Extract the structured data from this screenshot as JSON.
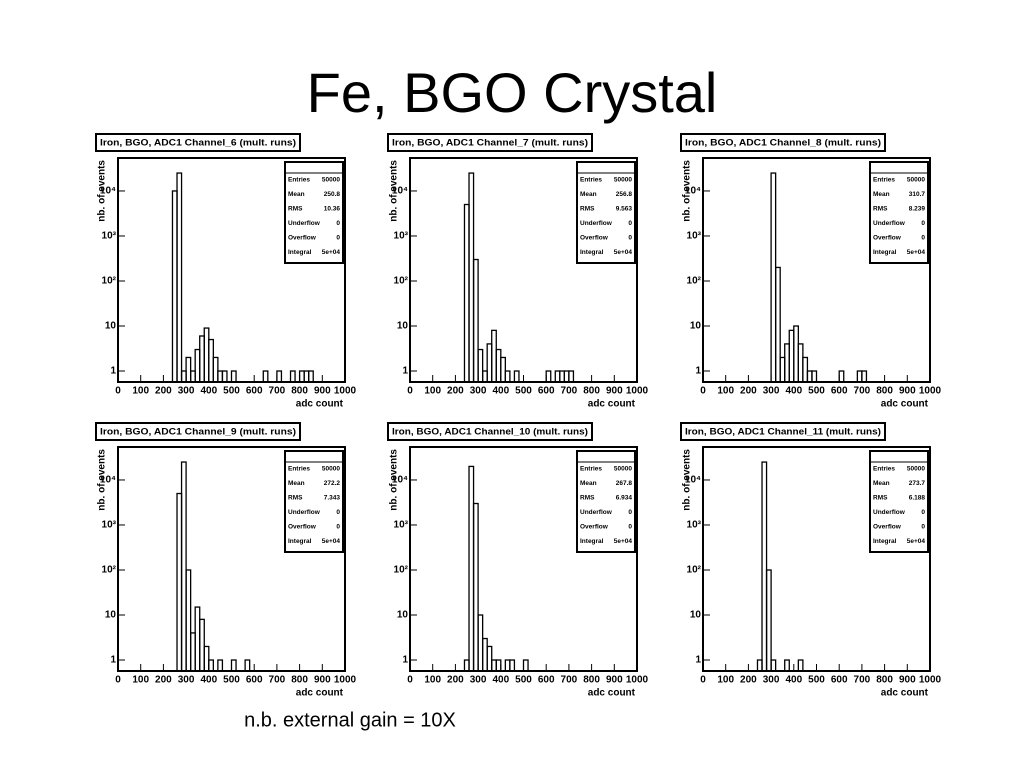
{
  "title": "Fe, BGO Crystal",
  "note": "n.b. external gain = 10X",
  "chart_data": [
    {
      "type": "histogram",
      "title": "Iron, BGO, ADC1 Channel_6 (mult. runs)",
      "xlabel": "adc count",
      "ylabel": "nb. of events",
      "bins": [
        200,
        220,
        240,
        260,
        280,
        300,
        320,
        340,
        360,
        380,
        400,
        420,
        440,
        460,
        480,
        500,
        520,
        540,
        560,
        580,
        600,
        620,
        640,
        660,
        680,
        700,
        720,
        740,
        760,
        780,
        800,
        820,
        840,
        860,
        880
      ],
      "counts": [
        0,
        0,
        10000,
        25000,
        1,
        2,
        1,
        3,
        6,
        9,
        5,
        2,
        1,
        1,
        0,
        1,
        0,
        0,
        0,
        0,
        0,
        0,
        1,
        0,
        0,
        1,
        0,
        0,
        1,
        0,
        1,
        1,
        1,
        0
      ],
      "xlim": [
        0,
        1000
      ],
      "xticks": [
        0,
        100,
        200,
        300,
        400,
        500,
        600,
        700,
        800,
        900,
        1000
      ],
      "ylim": [
        0.57,
        54000
      ],
      "log_y": true,
      "yticks": [
        1,
        10,
        {
          "value": 100,
          "label": "10²"
        },
        {
          "value": 1000,
          "label": "10³"
        },
        {
          "value": 10000,
          "label": "10⁴"
        }
      ],
      "stats": {
        "labels": [
          "Entries",
          "Mean",
          "RMS",
          "Underflow",
          "Overflow",
          "Integral"
        ],
        "values": [
          50000,
          250.8,
          10.36,
          0,
          0,
          {
            "value": 50000,
            "label": "5e+04"
          }
        ]
      }
    },
    {
      "type": "histogram",
      "title": "Iron, BGO, ADC1 Channel_7 (mult. runs)",
      "xlabel": "adc count",
      "ylabel": "nb. of events",
      "bins": [
        200,
        220,
        240,
        260,
        280,
        300,
        320,
        340,
        360,
        380,
        400,
        420,
        440,
        460,
        480,
        500,
        520,
        540,
        560,
        580,
        600,
        620,
        640,
        660,
        680,
        700,
        720,
        740,
        760,
        780,
        800,
        820,
        840,
        860,
        880
      ],
      "counts": [
        0,
        0,
        5000,
        25000,
        300,
        3,
        1,
        4,
        8,
        3,
        2,
        1,
        0,
        1,
        0,
        0,
        0,
        0,
        0,
        0,
        1,
        0,
        1,
        1,
        1,
        1,
        0,
        0,
        0,
        0,
        0,
        0,
        0,
        0
      ],
      "xlim": [
        0,
        1000
      ],
      "xticks": [
        0,
        100,
        200,
        300,
        400,
        500,
        600,
        700,
        800,
        900,
        1000
      ],
      "ylim": [
        0.57,
        54000
      ],
      "log_y": true,
      "yticks": [
        1,
        10,
        {
          "value": 100,
          "label": "10²"
        },
        {
          "value": 1000,
          "label": "10³"
        },
        {
          "value": 10000,
          "label": "10⁴"
        }
      ],
      "stats": {
        "labels": [
          "Entries",
          "Mean",
          "RMS",
          "Underflow",
          "Overflow",
          "Integral"
        ],
        "values": [
          50000,
          256.8,
          9.563,
          0,
          0,
          {
            "value": 50000,
            "label": "5e+04"
          }
        ]
      }
    },
    {
      "type": "histogram",
      "title": "Iron, BGO, ADC1 Channel_8 (mult. runs)",
      "xlabel": "adc count",
      "ylabel": "nb. of events",
      "bins": [
        200,
        220,
        240,
        260,
        280,
        300,
        320,
        340,
        360,
        380,
        400,
        420,
        440,
        460,
        480,
        500,
        520,
        540,
        560,
        580,
        600,
        620,
        640,
        660,
        680,
        700,
        720,
        740,
        760,
        780,
        800,
        820,
        840,
        860,
        880
      ],
      "counts": [
        0,
        0,
        0,
        0,
        0,
        25000,
        200,
        2,
        4,
        8,
        10,
        4,
        2,
        1,
        1,
        0,
        0,
        0,
        0,
        0,
        1,
        0,
        0,
        0,
        1,
        1,
        0,
        0,
        0,
        0,
        0,
        0,
        0,
        0
      ],
      "xlim": [
        0,
        1000
      ],
      "xticks": [
        0,
        100,
        200,
        300,
        400,
        500,
        600,
        700,
        800,
        900,
        1000
      ],
      "ylim": [
        0.57,
        54000
      ],
      "log_y": true,
      "yticks": [
        1,
        10,
        {
          "value": 100,
          "label": "10²"
        },
        {
          "value": 1000,
          "label": "10³"
        },
        {
          "value": 10000,
          "label": "10⁴"
        }
      ],
      "stats": {
        "labels": [
          "Entries",
          "Mean",
          "RMS",
          "Underflow",
          "Overflow",
          "Integral"
        ],
        "values": [
          50000,
          310.7,
          8.239,
          0,
          0,
          {
            "value": 50000,
            "label": "5e+04"
          }
        ]
      }
    },
    {
      "type": "histogram",
      "title": "Iron, BGO, ADC1 Channel_9 (mult. runs)",
      "xlabel": "adc count",
      "ylabel": "nb. of events",
      "bins": [
        200,
        220,
        240,
        260,
        280,
        300,
        320,
        340,
        360,
        380,
        400,
        420,
        440,
        460,
        480,
        500,
        520,
        540,
        560,
        580,
        600,
        620,
        640,
        660,
        680,
        700,
        720,
        740,
        760,
        780,
        800,
        820,
        840,
        860,
        880
      ],
      "counts": [
        0,
        0,
        0,
        5000,
        25000,
        100,
        4,
        15,
        8,
        2,
        1,
        0,
        1,
        0,
        0,
        1,
        0,
        0,
        1,
        0,
        0,
        0,
        0,
        0,
        0,
        0,
        0,
        0,
        0,
        0,
        0,
        0,
        0,
        0
      ],
      "xlim": [
        0,
        1000
      ],
      "xticks": [
        0,
        100,
        200,
        300,
        400,
        500,
        600,
        700,
        800,
        900,
        1000
      ],
      "ylim": [
        0.57,
        54000
      ],
      "log_y": true,
      "yticks": [
        1,
        10,
        {
          "value": 100,
          "label": "10²"
        },
        {
          "value": 1000,
          "label": "10³"
        },
        {
          "value": 10000,
          "label": "10⁴"
        }
      ],
      "stats": {
        "labels": [
          "Entries",
          "Mean",
          "RMS",
          "Underflow",
          "Overflow",
          "Integral"
        ],
        "values": [
          50000,
          272.2,
          7.343,
          0,
          0,
          {
            "value": 50000,
            "label": "5e+04"
          }
        ]
      }
    },
    {
      "type": "histogram",
      "title": "Iron, BGO, ADC1 Channel_10 (mult. runs)",
      "xlabel": "adc count",
      "ylabel": "nb. of events",
      "bins": [
        200,
        220,
        240,
        260,
        280,
        300,
        320,
        340,
        360,
        380,
        400,
        420,
        440,
        460,
        480,
        500,
        520,
        540,
        560,
        580,
        600,
        620,
        640,
        660,
        680,
        700,
        720,
        740,
        760,
        780,
        800,
        820,
        840,
        860,
        880
      ],
      "counts": [
        0,
        0,
        1,
        20000,
        3000,
        10,
        3,
        2,
        1,
        1,
        0,
        1,
        1,
        0,
        0,
        1,
        0,
        0,
        0,
        0,
        0,
        0,
        0,
        0,
        0,
        0,
        0,
        0,
        0,
        0,
        0,
        0,
        0,
        0
      ],
      "xlim": [
        0,
        1000
      ],
      "xticks": [
        0,
        100,
        200,
        300,
        400,
        500,
        600,
        700,
        800,
        900,
        1000
      ],
      "ylim": [
        0.57,
        54000
      ],
      "log_y": true,
      "yticks": [
        1,
        10,
        {
          "value": 100,
          "label": "10²"
        },
        {
          "value": 1000,
          "label": "10³"
        },
        {
          "value": 10000,
          "label": "10⁴"
        }
      ],
      "stats": {
        "labels": [
          "Entries",
          "Mean",
          "RMS",
          "Underflow",
          "Overflow",
          "Integral"
        ],
        "values": [
          50000,
          267.8,
          6.934,
          0,
          0,
          {
            "value": 50000,
            "label": "5e+04"
          }
        ]
      }
    },
    {
      "type": "histogram",
      "title": "Iron, BGO, ADC1 Channel_11 (mult. runs)",
      "xlabel": "adc count",
      "ylabel": "nb. of events",
      "bins": [
        200,
        220,
        240,
        260,
        280,
        300,
        320,
        340,
        360,
        380,
        400,
        420,
        440,
        460,
        480,
        500,
        520,
        540,
        560,
        580,
        600,
        620,
        640,
        660,
        680,
        700,
        720,
        740,
        760,
        780,
        800,
        820,
        840,
        860,
        880
      ],
      "counts": [
        0,
        0,
        1,
        25000,
        100,
        1,
        0,
        0,
        1,
        0,
        0,
        1,
        0,
        0,
        0,
        0,
        0,
        0,
        0,
        0,
        0,
        0,
        0,
        0,
        0,
        0,
        0,
        0,
        0,
        0,
        0,
        0,
        0,
        0
      ],
      "xlim": [
        0,
        1000
      ],
      "xticks": [
        0,
        100,
        200,
        300,
        400,
        500,
        600,
        700,
        800,
        900,
        1000
      ],
      "ylim": [
        0.57,
        54000
      ],
      "log_y": true,
      "yticks": [
        1,
        10,
        {
          "value": 100,
          "label": "10²"
        },
        {
          "value": 1000,
          "label": "10³"
        },
        {
          "value": 10000,
          "label": "10⁴"
        }
      ],
      "stats": {
        "labels": [
          "Entries",
          "Mean",
          "RMS",
          "Underflow",
          "Overflow",
          "Integral"
        ],
        "values": [
          50000,
          273.7,
          6.188,
          0,
          0,
          {
            "value": 50000,
            "label": "5e+04"
          }
        ]
      }
    }
  ]
}
